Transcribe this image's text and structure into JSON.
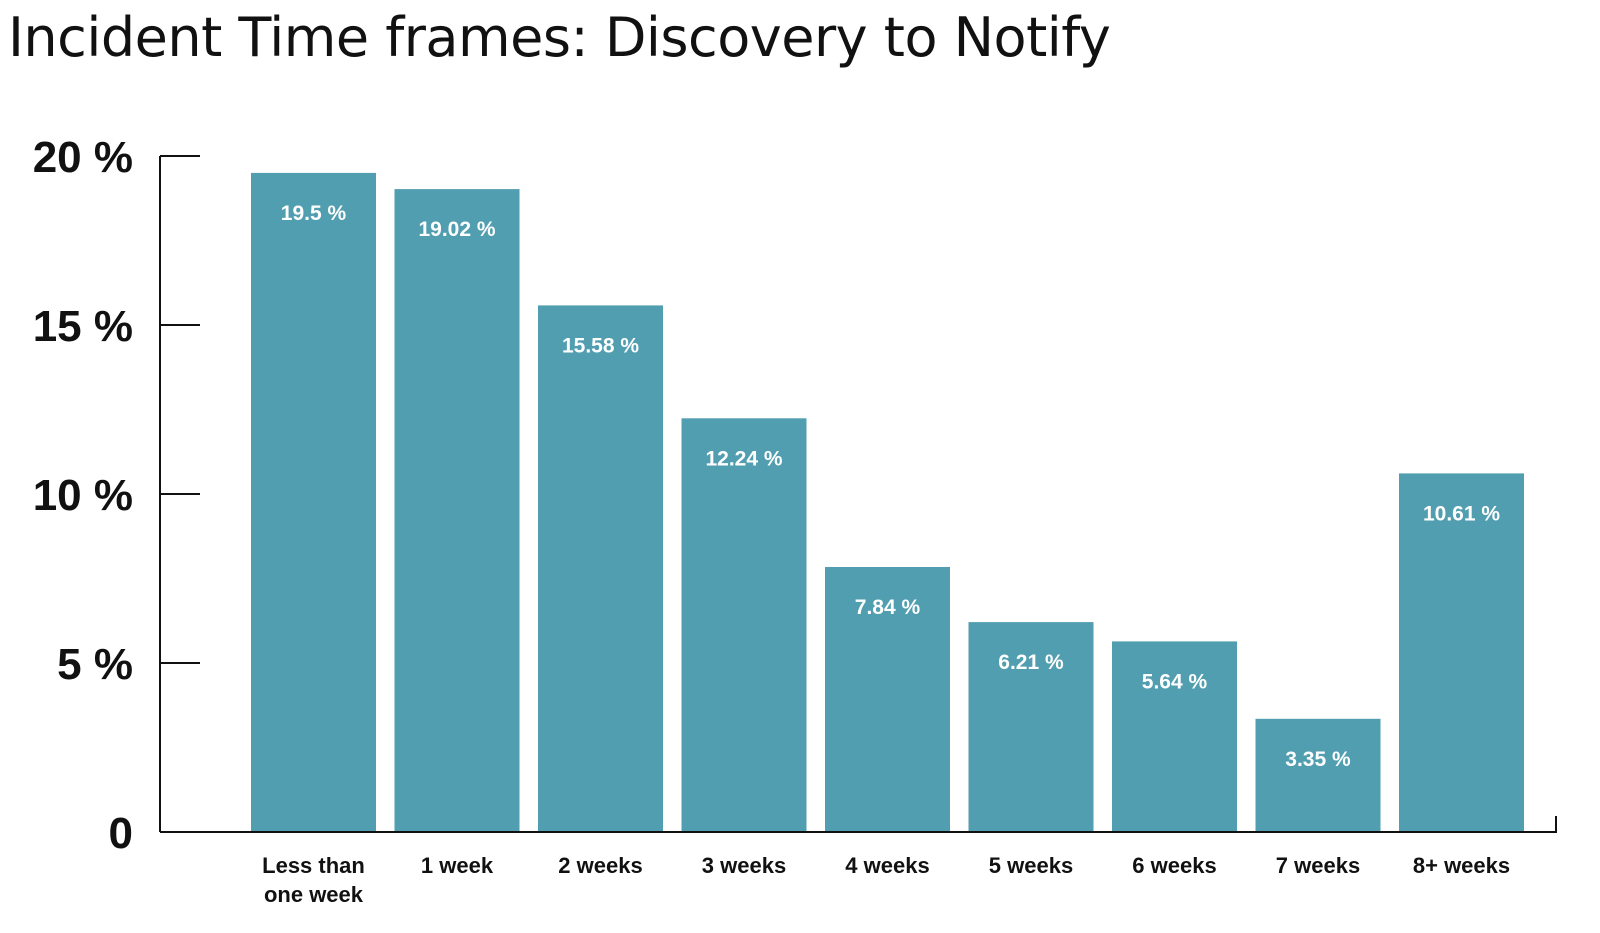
{
  "chart_data": {
    "type": "bar",
    "title": "Incident Time frames: Discovery to Notify",
    "xlabel": "",
    "ylabel": "",
    "categories": [
      [
        "Less than",
        "one week"
      ],
      [
        "1 week"
      ],
      [
        "2 weeks"
      ],
      [
        "3 weeks"
      ],
      [
        "4 weeks"
      ],
      [
        "5 weeks"
      ],
      [
        "6 weeks"
      ],
      [
        "7 weeks"
      ],
      [
        "8+ weeks"
      ]
    ],
    "values": [
      19.5,
      19.02,
      15.58,
      12.24,
      7.84,
      6.21,
      5.64,
      3.35,
      10.61
    ],
    "data_labels": [
      "19.5 %",
      "19.02 %",
      "15.58 %",
      "12.24 %",
      "7.84 %",
      "6.21 %",
      "5.64 %",
      "3.35 %",
      "10.61 %"
    ],
    "ylim": [
      0,
      20
    ],
    "y_ticks": [
      {
        "value": 0,
        "label": "0"
      },
      {
        "value": 5,
        "label": "5 %"
      },
      {
        "value": 10,
        "label": "10 %"
      },
      {
        "value": 15,
        "label": "15 %"
      },
      {
        "value": 20,
        "label": "20 %"
      }
    ],
    "grid": false,
    "legend": "none",
    "bar_color": "#519eb0",
    "label_color": "#ffffff",
    "axis_color": "#111111"
  }
}
